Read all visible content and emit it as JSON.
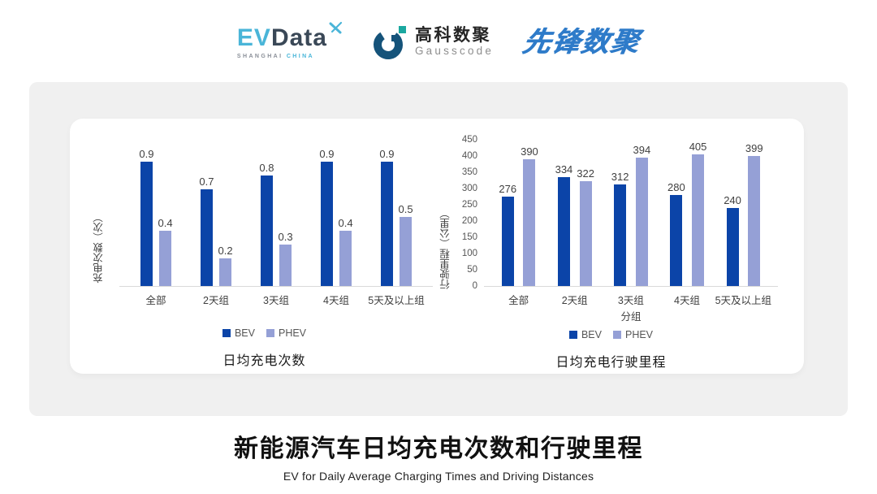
{
  "header": {
    "evdata": {
      "ev": "EV",
      "data": "Data",
      "sub_gray": "SHANGHAI",
      "sub_blue": "CHINA"
    },
    "gausscode": {
      "cn": "高科数聚",
      "en": "Gausscode"
    },
    "xianfeng": "先锋数聚"
  },
  "chart_data": [
    {
      "type": "bar",
      "title": "日均充电次数",
      "ylabel": "充电次数（次）",
      "xlabel": "",
      "categories": [
        "全部",
        "2天组",
        "3天组",
        "4天组",
        "5天及以上组"
      ],
      "series": [
        {
          "name": "BEV",
          "color": "#0b44a8",
          "values": [
            0.9,
            0.7,
            0.8,
            0.9,
            0.9
          ]
        },
        {
          "name": "PHEV",
          "color": "#95a0d6",
          "values": [
            0.4,
            0.2,
            0.3,
            0.4,
            0.5
          ]
        }
      ],
      "ylim": [
        0,
        1.0
      ],
      "yticks": [],
      "grid": false,
      "value_labels": true,
      "legend_position": "bottom"
    },
    {
      "type": "bar",
      "title": "日均充电行驶里程",
      "ylabel": "行驶里程（公里）",
      "xlabel": "分组",
      "categories": [
        "全部",
        "2天组",
        "3天组",
        "4天组",
        "5天及以上组"
      ],
      "series": [
        {
          "name": "BEV",
          "color": "#0b44a8",
          "values": [
            276,
            334,
            312,
            280,
            240
          ]
        },
        {
          "name": "PHEV",
          "color": "#95a0d6",
          "values": [
            390,
            322,
            394,
            405,
            399
          ]
        }
      ],
      "ylim": [
        0,
        450
      ],
      "yticks": [
        0,
        50,
        100,
        150,
        200,
        250,
        300,
        350,
        400,
        450
      ],
      "grid": false,
      "value_labels": true,
      "legend_position": "bottom"
    }
  ],
  "footer": {
    "title": "新能源汽车日均充电次数和行驶里程",
    "subtitle": "EV for Daily Average Charging Times and Driving Distances"
  },
  "colors": {
    "bev": "#0b44a8",
    "phev": "#95a0d6",
    "panel_bg": "#f0f0f0",
    "card_bg": "#ffffff",
    "baseline": "#d9d9d9",
    "evdata_cyan": "#4ab5d8",
    "evdata_slate": "#3a4857",
    "gauss_navy": "#15537a",
    "gauss_teal": "#1ba8a0",
    "xianfeng_blue": "#2e7bc9"
  }
}
